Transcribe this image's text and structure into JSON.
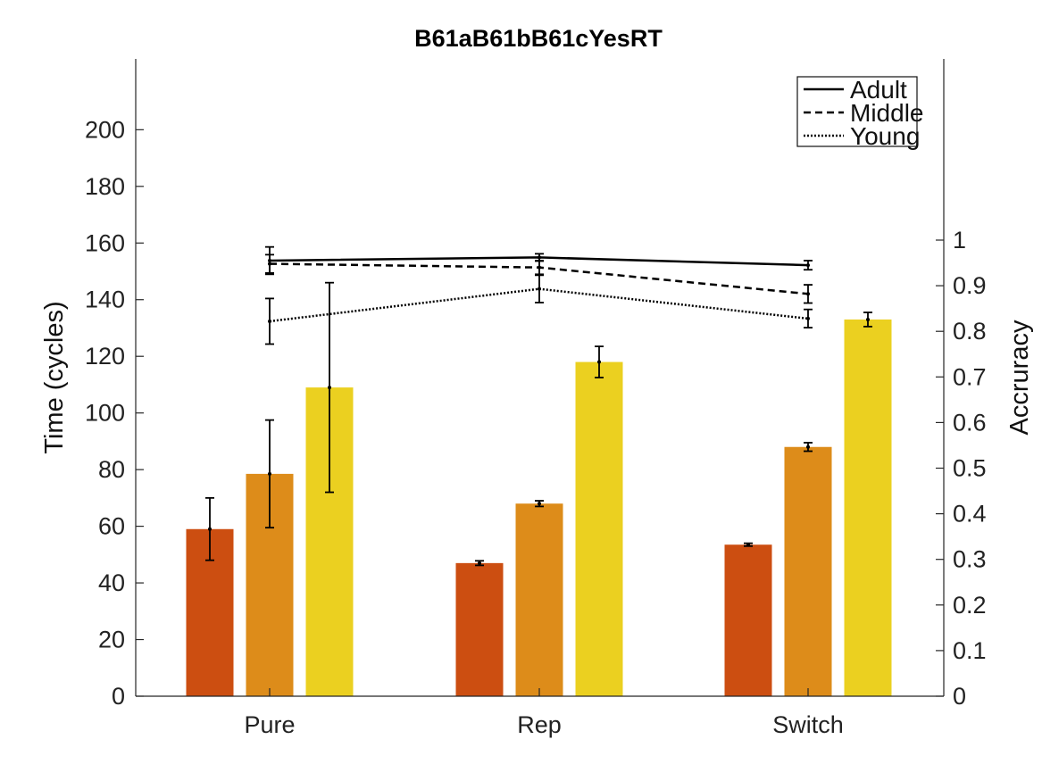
{
  "chart_data": {
    "type": "bar",
    "title": "B61aB61bB61cYesRT",
    "ylabel": "Time (cycles)",
    "y2label": "Accruracy",
    "categories": [
      "Pure",
      "Rep",
      "Switch"
    ],
    "ylim": [
      0,
      225
    ],
    "yticks": [
      "0",
      "20",
      "40",
      "60",
      "80",
      "100",
      "120",
      "140",
      "160",
      "180",
      "200"
    ],
    "y2lim": [
      0,
      1.0
    ],
    "y2ticks": [
      "0",
      "0.1",
      "0.2",
      "0.3",
      "0.4",
      "0.5",
      "0.6",
      "0.7",
      "0.8",
      "0.9",
      "1"
    ],
    "bar_series": [
      {
        "color": "#cc4e11",
        "values": [
          59,
          47,
          53.5
        ],
        "errors": [
          11,
          0.8,
          0.5
        ]
      },
      {
        "color": "#dd8c1a",
        "values": [
          78.5,
          68,
          88
        ],
        "errors": [
          19,
          1,
          1.5
        ]
      },
      {
        "color": "#ebd020",
        "values": [
          109,
          118,
          133
        ],
        "errors": [
          37,
          5.5,
          2.5
        ]
      }
    ],
    "line_series": [
      {
        "name": "Adult",
        "style": "solid",
        "values": [
          0.955,
          0.962,
          0.945
        ],
        "errors": [
          0.03,
          0.008,
          0.01
        ]
      },
      {
        "name": "Middle",
        "style": "dashed",
        "values": [
          0.948,
          0.94,
          0.882
        ],
        "errors": [
          0.02,
          0.015,
          0.02
        ]
      },
      {
        "name": "Young",
        "style": "dotted",
        "values": [
          0.822,
          0.893,
          0.828
        ],
        "errors": [
          0.05,
          0.03,
          0.02
        ]
      }
    ],
    "legend": {
      "placement": "top-right",
      "entries": [
        "Adult",
        "Middle",
        "Young"
      ]
    },
    "grid": false
  }
}
